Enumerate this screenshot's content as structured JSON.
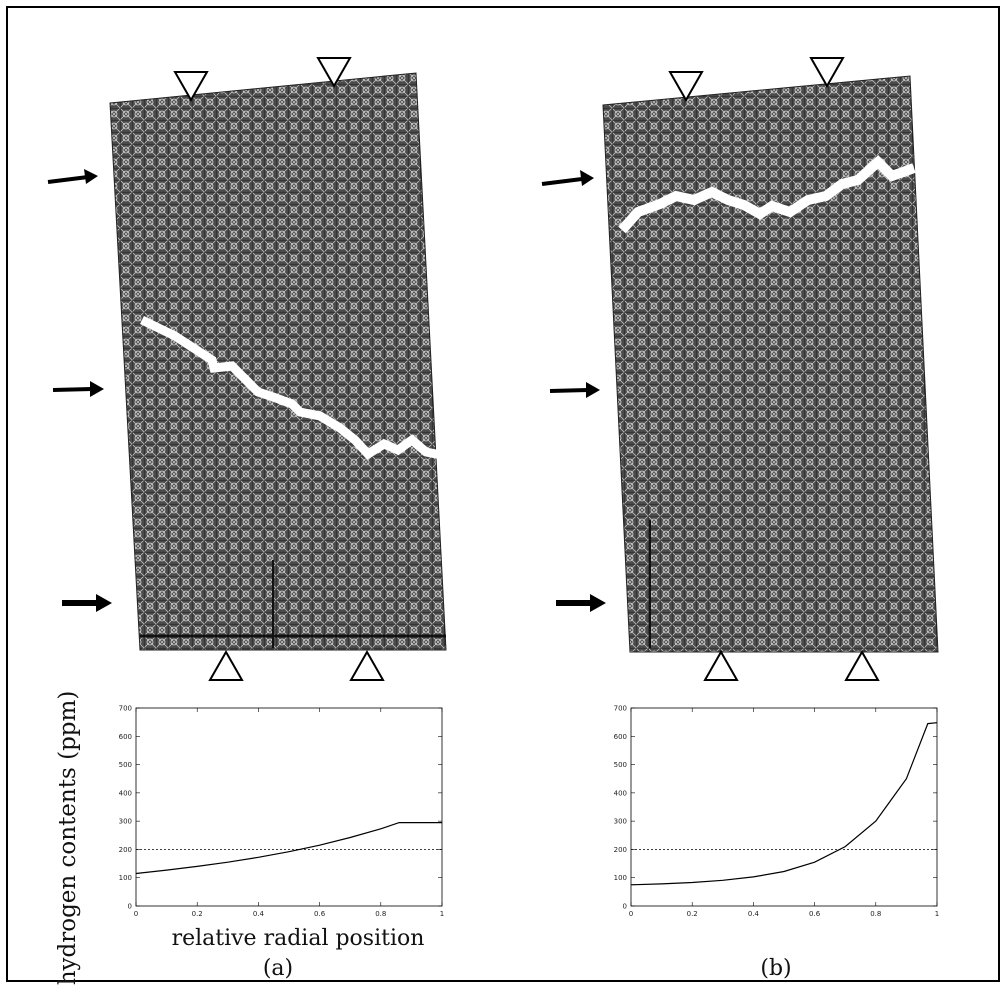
{
  "figure": {
    "y_axis_label": "hydrogen contents (ppm)",
    "x_axis_label": "relative radial position",
    "panels": [
      {
        "caption": "(a)"
      },
      {
        "caption": "(b)"
      }
    ]
  },
  "chart_data": [
    {
      "type": "line",
      "panel": "(a)",
      "xlabel": "relative radial position",
      "ylabel": "hydrogen contents (ppm)",
      "xlim": [
        0,
        1
      ],
      "ylim": [
        0,
        700
      ],
      "xticks": [
        0,
        0.2,
        0.4,
        0.6,
        0.8,
        1
      ],
      "xtick_labels": [
        "0",
        "0.2",
        "0.4",
        "0.6",
        "0.8",
        "1"
      ],
      "yticks": [
        0,
        100,
        200,
        300,
        400,
        500,
        600,
        700
      ],
      "ytick_labels": [
        "0",
        "100",
        "200",
        "300",
        "400",
        "500",
        "600",
        "700"
      ],
      "series": [
        {
          "style": "solid",
          "x": [
            0,
            0.1,
            0.2,
            0.3,
            0.4,
            0.5,
            0.6,
            0.7,
            0.8,
            0.86,
            1.0
          ],
          "y": [
            115,
            127,
            140,
            155,
            172,
            192,
            215,
            242,
            273,
            295,
            295
          ]
        },
        {
          "style": "dotted",
          "x": [
            0,
            1
          ],
          "y": [
            200,
            200
          ]
        }
      ],
      "grid": false
    },
    {
      "type": "line",
      "panel": "(b)",
      "xlabel": "",
      "ylabel": "",
      "xlim": [
        0,
        1
      ],
      "ylim": [
        0,
        700
      ],
      "xticks": [
        0,
        0.2,
        0.4,
        0.6,
        0.8,
        1
      ],
      "xtick_labels": [
        "0",
        "0.2",
        "0.4",
        "0.6",
        "0.8",
        "1"
      ],
      "yticks": [
        0,
        100,
        200,
        300,
        400,
        500,
        600,
        700
      ],
      "ytick_labels": [
        "0",
        "100",
        "200",
        "300",
        "400",
        "500",
        "600",
        "700"
      ],
      "series": [
        {
          "style": "solid",
          "x": [
            0,
            0.1,
            0.2,
            0.3,
            0.4,
            0.5,
            0.6,
            0.7,
            0.8,
            0.9,
            0.97,
            1.0
          ],
          "y": [
            75,
            78,
            83,
            91,
            103,
            122,
            155,
            210,
            300,
            450,
            645,
            648
          ]
        },
        {
          "style": "dotted",
          "x": [
            0,
            1
          ],
          "y": [
            200,
            200
          ]
        }
      ],
      "grid": false
    }
  ]
}
